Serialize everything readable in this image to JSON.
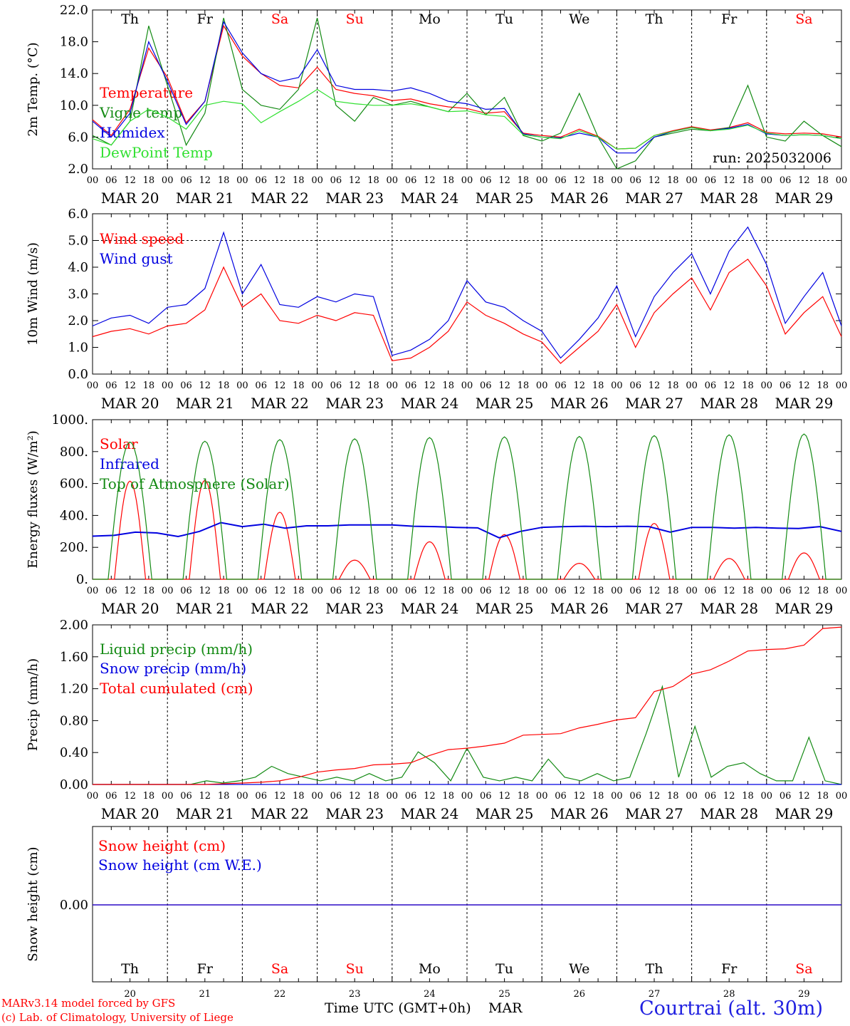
{
  "days": {
    "names": [
      "Th",
      "Fr",
      "Sa",
      "Su",
      "Mo",
      "Tu",
      "We",
      "Th",
      "Fr",
      "Sa"
    ],
    "weekend": [
      false,
      false,
      true,
      true,
      false,
      false,
      false,
      false,
      false,
      true
    ],
    "dates": [
      "MAR 20",
      "MAR 21",
      "MAR 22",
      "MAR 23",
      "MAR 24",
      "MAR 25",
      "MAR 26",
      "MAR 27",
      "MAR 28",
      "MAR 29"
    ],
    "day_numbers": [
      "20",
      "21",
      "22",
      "23",
      "24",
      "25",
      "26",
      "27",
      "28",
      "29"
    ],
    "hour_ticks": [
      "00",
      "06",
      "12",
      "18"
    ],
    "final_tick": "00"
  },
  "colors": {
    "red": "#ff0000",
    "darkgreen": "#138a13",
    "blue": "#0000e0",
    "lightgreen": "#30e030",
    "weekend": "#ff0000"
  },
  "chart_data": [
    {
      "type": "line",
      "ylabel": "2m Temp. (°C)",
      "ylim": [
        2.0,
        22.0
      ],
      "yticks": [
        "2.0",
        "6.0",
        "10.0",
        "14.0",
        "18.0",
        "22.0"
      ],
      "annotation": "run: 2025032006",
      "x_hours": [
        0,
        6,
        12,
        18,
        24,
        30,
        36,
        42,
        48,
        54,
        60,
        66,
        72,
        78,
        84,
        90,
        96,
        102,
        108,
        114,
        120,
        126,
        132,
        138,
        144,
        150,
        156,
        162,
        168,
        174,
        180,
        186,
        192,
        198,
        204,
        210,
        216,
        222,
        228,
        234,
        240
      ],
      "series": [
        {
          "name": "Temperature",
          "color": "#ff0000",
          "values": [
            8.2,
            6.2,
            9.5,
            17.2,
            13.5,
            7.8,
            10.5,
            20.0,
            16.2,
            14.0,
            12.5,
            12.2,
            14.8,
            12.0,
            11.5,
            11.2,
            10.6,
            10.8,
            10.2,
            9.8,
            9.6,
            9.0,
            9.2,
            6.5,
            6.2,
            6.0,
            7.0,
            6.1,
            4.5,
            4.6,
            6.2,
            6.8,
            7.3,
            6.9,
            7.2,
            7.8,
            6.6,
            6.4,
            6.5,
            6.4,
            6.0
          ]
        },
        {
          "name": "Vigne temp",
          "color": "#138a13",
          "values": [
            6.2,
            5.0,
            8.0,
            20.0,
            12.5,
            5.0,
            9.0,
            21.0,
            12.0,
            10.0,
            9.5,
            12.0,
            21.0,
            10.0,
            8.0,
            11.0,
            10.0,
            10.5,
            9.8,
            9.2,
            11.5,
            8.8,
            11.0,
            6.2,
            5.5,
            6.5,
            11.5,
            6.0,
            2.0,
            3.0,
            6.0,
            6.5,
            7.0,
            6.8,
            7.2,
            12.5,
            6.0,
            5.5,
            8.0,
            6.2,
            4.8
          ]
        },
        {
          "name": "Humidex",
          "color": "#0000e0",
          "values": [
            8.0,
            6.0,
            9.0,
            18.0,
            13.0,
            7.6,
            10.5,
            20.5,
            16.6,
            14.0,
            13.0,
            13.5,
            17.0,
            12.5,
            12.0,
            12.0,
            11.8,
            12.2,
            11.5,
            10.5,
            10.2,
            9.5,
            9.6,
            6.4,
            6.0,
            5.9,
            6.5,
            6.0,
            4.0,
            4.0,
            6.0,
            6.7,
            7.2,
            6.8,
            7.1,
            7.6,
            6.4,
            6.2,
            6.3,
            6.2,
            5.8
          ]
        },
        {
          "name": "DewPoint Temp",
          "color": "#30e030",
          "values": [
            5.8,
            5.0,
            8.0,
            9.5,
            8.5,
            7.0,
            10.0,
            10.5,
            10.2,
            7.8,
            9.2,
            10.5,
            12.0,
            10.5,
            10.2,
            10.0,
            10.0,
            10.2,
            9.8,
            9.2,
            9.3,
            8.8,
            8.6,
            6.3,
            6.0,
            5.8,
            6.8,
            6.0,
            4.5,
            4.6,
            6.2,
            6.7,
            7.2,
            6.8,
            7.0,
            7.5,
            6.5,
            6.2,
            6.3,
            6.2,
            5.8
          ]
        }
      ]
    },
    {
      "type": "line",
      "ylabel": "10m Wind (m/s)",
      "ylim": [
        0.0,
        6.0
      ],
      "yticks": [
        "0.0",
        "1.0",
        "2.0",
        "3.0",
        "4.0",
        "5.0",
        "6.0"
      ],
      "reference_line": 5.0,
      "x_hours": [
        0,
        6,
        12,
        18,
        24,
        30,
        36,
        42,
        48,
        54,
        60,
        66,
        72,
        78,
        84,
        90,
        96,
        102,
        108,
        114,
        120,
        126,
        132,
        138,
        144,
        150,
        156,
        162,
        168,
        174,
        180,
        186,
        192,
        198,
        204,
        210,
        216,
        222,
        228,
        234,
        240
      ],
      "series": [
        {
          "name": "Wind speed",
          "color": "#ff0000",
          "values": [
            1.4,
            1.6,
            1.7,
            1.5,
            1.8,
            1.9,
            2.4,
            4.0,
            2.5,
            3.0,
            2.0,
            1.9,
            2.2,
            2.0,
            2.3,
            2.2,
            0.5,
            0.6,
            1.0,
            1.6,
            2.7,
            2.2,
            1.9,
            1.5,
            1.2,
            0.4,
            1.0,
            1.6,
            2.6,
            1.0,
            2.3,
            3.0,
            3.6,
            2.4,
            3.8,
            4.3,
            3.3,
            1.5,
            2.3,
            2.9,
            1.4
          ]
        },
        {
          "name": "Wind gust",
          "color": "#0000e0",
          "values": [
            1.8,
            2.1,
            2.2,
            1.9,
            2.5,
            2.6,
            3.2,
            5.3,
            3.0,
            4.1,
            2.6,
            2.5,
            2.9,
            2.7,
            3.0,
            2.9,
            0.7,
            0.9,
            1.3,
            2.0,
            3.5,
            2.7,
            2.5,
            2.0,
            1.6,
            0.6,
            1.3,
            2.1,
            3.3,
            1.4,
            2.9,
            3.8,
            4.5,
            3.0,
            4.6,
            5.5,
            4.1,
            1.9,
            2.9,
            3.8,
            1.8
          ]
        }
      ]
    },
    {
      "type": "line",
      "ylabel": "Energy fluxes (W/m²)",
      "ylim": [
        0,
        1000
      ],
      "yticks": [
        "0.",
        "200.",
        "400.",
        "600.",
        "800.",
        "1000."
      ],
      "series": [
        {
          "name": "Solar",
          "color": "#ff0000",
          "daily_peak": [
            615,
            620,
            420,
            120,
            235,
            280,
            100,
            350,
            130,
            165
          ]
        },
        {
          "name": "Infrared",
          "color": "#0000e0",
          "values": [
            270,
            275,
            295,
            290,
            268,
            300,
            355,
            330,
            345,
            320,
            335,
            335,
            340,
            340,
            340,
            332,
            330,
            325,
            322,
            260,
            300,
            325,
            330,
            332,
            330,
            332,
            330,
            295,
            325,
            325,
            320,
            325,
            320,
            318,
            330,
            300
          ]
        },
        {
          "name": "Top of Atmosphere (Solar)",
          "color": "#138a13",
          "daily_peak": [
            860,
            865,
            875,
            880,
            888,
            892,
            895,
            900,
            905,
            910
          ]
        }
      ]
    },
    {
      "type": "line",
      "ylabel": "Precip (mm/h)",
      "ylim": [
        0.0,
        2.2
      ],
      "yticks": [
        "0.00",
        "0.40",
        "0.80",
        "1.20",
        "1.60",
        "2.00"
      ],
      "series": [
        {
          "name": "Liquid precip (mm/h)",
          "color": "#138a13",
          "values": [
            0,
            0,
            0,
            0,
            0,
            0,
            0,
            0.05,
            0.02,
            0.05,
            0.1,
            0.25,
            0.15,
            0.1,
            0.05,
            0.1,
            0.05,
            0.15,
            0.05,
            0.1,
            0.45,
            0.3,
            0.05,
            0.5,
            0.1,
            0.05,
            0.1,
            0.05,
            0.35,
            0.1,
            0.05,
            0.15,
            0.05,
            0.1,
            0.7,
            1.35,
            0.1,
            0.8,
            0.1,
            0.25,
            0.3,
            0.15,
            0.05,
            0.05,
            0.65,
            0.05,
            0
          ]
        },
        {
          "name": "Snow precip (mm/h)",
          "color": "#0000e0",
          "values": [
            0,
            0
          ]
        },
        {
          "name": "Total cumulated (cm)",
          "color": "#ff0000",
          "values": [
            0,
            0,
            0,
            0,
            0,
            0,
            0,
            0.01,
            0.02,
            0.03,
            0.05,
            0.1,
            0.17,
            0.2,
            0.22,
            0.27,
            0.28,
            0.3,
            0.4,
            0.48,
            0.5,
            0.53,
            0.57,
            0.68,
            0.69,
            0.7,
            0.78,
            0.83,
            0.89,
            0.92,
            1.28,
            1.35,
            1.52,
            1.58,
            1.7,
            1.84,
            1.86,
            1.87,
            1.92,
            2.15,
            2.17
          ]
        }
      ]
    },
    {
      "type": "line",
      "ylabel": "Snow height (cm)",
      "yticks": [
        "0.00"
      ],
      "series": [
        {
          "name": "Snow height (cm)",
          "color": "#ff0000",
          "values": [
            0,
            0
          ]
        },
        {
          "name": "Snow height (cm W.E.)",
          "color": "#0000e0",
          "values": [
            0,
            0
          ]
        }
      ]
    }
  ],
  "footer": {
    "model": "MARv3.14 model forced by GFS",
    "credit": "(c) Lab. of Climatology, University of Liege",
    "xlabel": "Time UTC (GMT+0h)",
    "month": "MAR",
    "location": "Courtrai (alt. 30m)"
  }
}
